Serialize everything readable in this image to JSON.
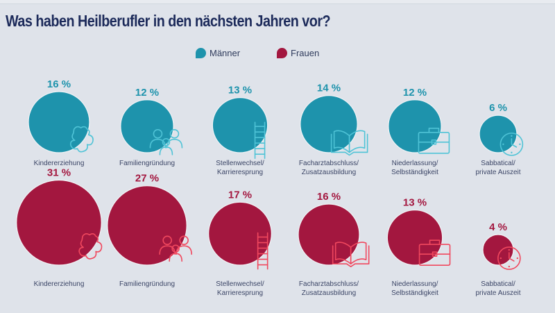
{
  "chart_data": {
    "type": "bubble",
    "title": "Was haben Heilberufler in den nächsten Jahren vor?",
    "unit": "%",
    "legend": {
      "position": "top-center",
      "entries": [
        {
          "name": "Männer",
          "color": "#1e93ac"
        },
        {
          "name": "Frauen",
          "color": "#a3173f"
        }
      ]
    },
    "categories": [
      {
        "label": "Kindererziehung",
        "lines": [
          "Kindererziehung"
        ],
        "icon": "teddy-bear-icon"
      },
      {
        "label": "Familiengründung",
        "lines": [
          "Familiengründung"
        ],
        "icon": "family-icon"
      },
      {
        "label": "Stellenwechsel/ Karrieresprung",
        "lines": [
          "Stellenwechsel/",
          "Karrieresprung"
        ],
        "icon": "ladder-icon"
      },
      {
        "label": "Facharztabschluss/ Zusatzausbildung",
        "lines": [
          "Facharztabschluss/",
          "Zusatzausbildung"
        ],
        "icon": "book-icon"
      },
      {
        "label": "Niederlassung/ Selbständigkeit",
        "lines": [
          "Niederlassung/",
          "Selbständigkeit"
        ],
        "icon": "briefcase-icon"
      },
      {
        "label": "Sabbatical/ private Auszeit",
        "lines": [
          "Sabbatical/",
          "private Auszeit"
        ],
        "icon": "clock-icon"
      }
    ],
    "series": [
      {
        "name": "Männer",
        "values": [
          16,
          12,
          13,
          14,
          12,
          6
        ],
        "color": "#1e93ac",
        "icon_color": "#4fc3d6"
      },
      {
        "name": "Frauen",
        "values": [
          31,
          27,
          17,
          16,
          13,
          4
        ],
        "color": "#a3173f",
        "icon_color": "#f0485e"
      }
    ]
  },
  "colors": {
    "background": "#dfe3ea",
    "title": "#1c2a5a",
    "label": "#3b4566"
  }
}
